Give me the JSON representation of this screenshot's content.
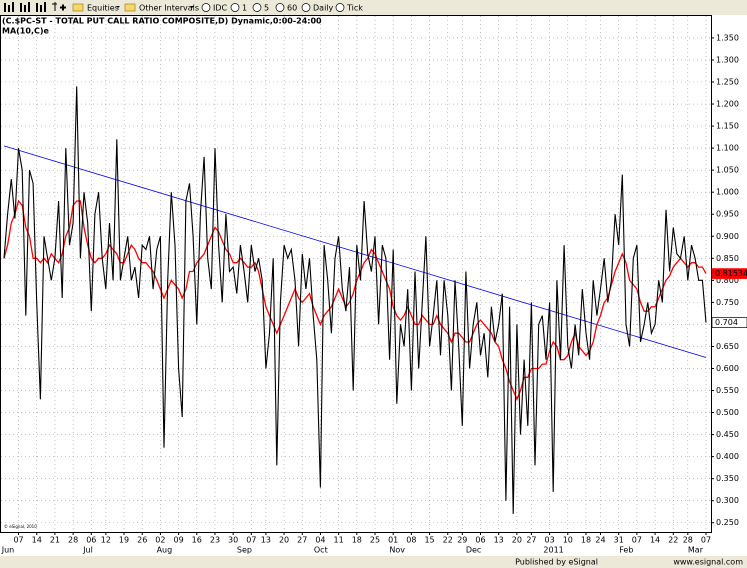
{
  "toolbar": {
    "items": [
      "Equities",
      "Other Intervals",
      "IDC",
      "1",
      "5",
      "60",
      "Daily",
      "Tick"
    ]
  },
  "chart_data": {
    "type": "line",
    "title": "(C.$PC-ST - TOTAL PUT CALL RATIO COMPOSITE,D) Dynamic,0:00-24:00",
    "categories": [
      null,
      null,
      null,
      null,
      "07",
      null,
      null,
      null,
      null,
      "14",
      null,
      null,
      null,
      null,
      "21",
      null,
      null,
      null,
      null,
      "28",
      null,
      null,
      null,
      null,
      "06",
      null,
      null,
      null,
      "12",
      null,
      null,
      null,
      null,
      "19",
      null,
      null,
      null,
      null,
      "26",
      null,
      null,
      null,
      null,
      "02",
      null,
      null,
      null,
      null,
      "09",
      null,
      null,
      null,
      null,
      "16",
      null,
      null,
      null,
      null,
      "23",
      null,
      null,
      null,
      null,
      "30",
      null,
      null,
      null,
      null,
      "07",
      null,
      null,
      null,
      "13",
      null,
      null,
      null,
      null,
      "20",
      null,
      null,
      null,
      null,
      "27",
      null,
      null,
      null,
      null,
      "04",
      null,
      null,
      null,
      null,
      "11",
      null,
      null,
      null,
      null,
      "18",
      null,
      null,
      null,
      null,
      "25",
      null,
      null,
      null,
      null,
      "01",
      null,
      null,
      null,
      null,
      "08",
      null,
      null,
      null,
      null,
      "15",
      null,
      null,
      null,
      null,
      "22",
      null,
      null,
      null,
      "29",
      null,
      null,
      null,
      null,
      "06",
      null,
      null,
      null,
      null,
      "13",
      null,
      null,
      null,
      null,
      "20",
      null,
      null,
      null,
      "27",
      null,
      null,
      null,
      null,
      "03",
      null,
      null,
      null,
      null,
      "10",
      null,
      null,
      null,
      null,
      "18",
      null,
      null,
      null,
      "24",
      null,
      null,
      null,
      null,
      "31",
      null,
      null,
      null,
      null,
      "07",
      null,
      null,
      null,
      null,
      "14",
      null,
      null,
      null,
      null,
      "22",
      null,
      null,
      null,
      "28",
      null,
      null,
      null,
      null,
      "07"
    ],
    "month_labels": [
      "Jun",
      null,
      null,
      null,
      null,
      null,
      null,
      null,
      null,
      null,
      null,
      null,
      null,
      null,
      null,
      null,
      null,
      null,
      null,
      null,
      null,
      null,
      "Jul",
      null,
      null,
      null,
      null,
      null,
      null,
      null,
      null,
      null,
      null,
      null,
      null,
      null,
      null,
      null,
      null,
      null,
      null,
      null,
      null,
      "Aug",
      null,
      null,
      null,
      null,
      null,
      null,
      null,
      null,
      null,
      null,
      null,
      null,
      null,
      null,
      null,
      null,
      null,
      null,
      null,
      null,
      null,
      "Sep",
      null,
      null,
      null,
      null,
      null,
      null,
      null,
      null,
      null,
      null,
      null,
      null,
      null,
      null,
      null,
      null,
      null,
      null,
      null,
      null,
      "Oct",
      null,
      null,
      null,
      null,
      null,
      null,
      null,
      null,
      null,
      null,
      null,
      null,
      null,
      null,
      null,
      null,
      null,
      null,
      null,
      null,
      "Nov",
      null,
      null,
      null,
      null,
      null,
      null,
      null,
      null,
      null,
      null,
      null,
      null,
      null,
      null,
      null,
      null,
      null,
      null,
      null,
      null,
      "Dec",
      null,
      null,
      null,
      null,
      null,
      null,
      null,
      null,
      null,
      null,
      null,
      null,
      null,
      null,
      null,
      null,
      null,
      null,
      null,
      null,
      null,
      "2011",
      null,
      null,
      null,
      null,
      null,
      null,
      null,
      null,
      null,
      null,
      null,
      null,
      null,
      null,
      null,
      null,
      null,
      null,
      null,
      "Feb",
      null,
      null,
      null,
      null,
      null,
      null,
      null,
      null,
      null,
      null,
      null,
      null,
      null,
      null,
      null,
      null,
      null,
      null,
      "Mar",
      null,
      null,
      null,
      null
    ],
    "series": [
      {
        "color": "#000000",
        "values": [
          0.85,
          0.95,
          1.03,
          0.94,
          1.1,
          1.05,
          0.72,
          1.05,
          1.02,
          0.75,
          0.53,
          0.9,
          0.85,
          0.8,
          0.85,
          0.98,
          0.76,
          1.1,
          0.88,
          0.93,
          1.24,
          0.85,
          1.0,
          0.93,
          0.73,
          0.95,
          1.0,
          0.85,
          0.78,
          0.93,
          0.8,
          1.12,
          0.8,
          0.85,
          0.9,
          0.8,
          0.83,
          0.76,
          0.88,
          0.87,
          0.9,
          0.78,
          0.87,
          0.9,
          0.42,
          0.8,
          1.0,
          0.88,
          0.6,
          0.49,
          0.98,
          1.02,
          0.9,
          0.7,
          0.95,
          1.08,
          0.85,
          0.78,
          1.1,
          0.88,
          0.75,
          0.95,
          0.82,
          0.83,
          0.77,
          0.88,
          0.82,
          0.75,
          0.88,
          0.82,
          0.85,
          0.8,
          0.6,
          0.68,
          0.85,
          0.38,
          0.75,
          0.88,
          0.85,
          0.87,
          0.8,
          0.65,
          0.86,
          0.78,
          0.85,
          0.72,
          0.62,
          0.33,
          0.88,
          0.8,
          0.68,
          0.85,
          0.9,
          0.78,
          0.73,
          0.83,
          0.55,
          0.88,
          0.8,
          0.98,
          0.86,
          0.82,
          0.9,
          0.7,
          0.88,
          0.85,
          0.62,
          0.87,
          0.52,
          0.7,
          0.65,
          0.78,
          0.55,
          0.82,
          0.6,
          0.75,
          0.9,
          0.65,
          0.72,
          0.8,
          0.63,
          0.8,
          0.72,
          0.55,
          0.8,
          0.65,
          0.47,
          0.82,
          0.6,
          0.7,
          0.75,
          0.63,
          0.68,
          0.58,
          0.74,
          0.66,
          0.7,
          0.77,
          0.3,
          0.74,
          0.27,
          0.7,
          0.45,
          0.62,
          0.47,
          0.75,
          0.38,
          0.7,
          0.72,
          0.62,
          0.75,
          0.32,
          0.8,
          0.62,
          0.88,
          0.65,
          0.6,
          0.7,
          0.63,
          0.78,
          0.68,
          0.62,
          0.8,
          0.72,
          0.78,
          0.85,
          0.75,
          0.8,
          0.95,
          0.88,
          1.04,
          0.7,
          0.65,
          0.85,
          0.88,
          0.66,
          0.7,
          0.75,
          0.68,
          0.7,
          0.8,
          0.75,
          0.96,
          0.82,
          0.92,
          0.86,
          0.85,
          0.9,
          0.8,
          0.88,
          0.85,
          0.8,
          0.8,
          0.704
        ]
      },
      {
        "name": "MA(10,C)e",
        "color": "#ff0000",
        "values": [
          0.85,
          0.88,
          0.93,
          0.95,
          0.98,
          0.97,
          0.92,
          0.9,
          0.85,
          0.85,
          0.84,
          0.85,
          0.84,
          0.86,
          0.85,
          0.84,
          0.86,
          0.9,
          0.92,
          0.97,
          0.98,
          0.98,
          0.92,
          0.88,
          0.85,
          0.84,
          0.85,
          0.85,
          0.86,
          0.88,
          0.87,
          0.86,
          0.84,
          0.84,
          0.86,
          0.88,
          0.87,
          0.85,
          0.84,
          0.84,
          0.83,
          0.82,
          0.8,
          0.78,
          0.76,
          0.78,
          0.8,
          0.79,
          0.78,
          0.76,
          0.78,
          0.82,
          0.82,
          0.84,
          0.85,
          0.86,
          0.88,
          0.9,
          0.92,
          0.91,
          0.89,
          0.87,
          0.86,
          0.84,
          0.84,
          0.85,
          0.84,
          0.83,
          0.83,
          0.84,
          0.82,
          0.78,
          0.74,
          0.72,
          0.7,
          0.68,
          0.7,
          0.72,
          0.74,
          0.76,
          0.78,
          0.76,
          0.75,
          0.76,
          0.77,
          0.74,
          0.72,
          0.7,
          0.72,
          0.73,
          0.74,
          0.76,
          0.78,
          0.76,
          0.74,
          0.75,
          0.77,
          0.8,
          0.82,
          0.84,
          0.85,
          0.87,
          0.86,
          0.84,
          0.82,
          0.8,
          0.78,
          0.74,
          0.72,
          0.71,
          0.72,
          0.74,
          0.72,
          0.7,
          0.7,
          0.72,
          0.71,
          0.7,
          0.7,
          0.72,
          0.7,
          0.69,
          0.68,
          0.66,
          0.68,
          0.68,
          0.67,
          0.66,
          0.66,
          0.68,
          0.7,
          0.71,
          0.7,
          0.69,
          0.68,
          0.66,
          0.65,
          0.62,
          0.6,
          0.57,
          0.55,
          0.53,
          0.55,
          0.58,
          0.58,
          0.6,
          0.6,
          0.6,
          0.61,
          0.61,
          0.64,
          0.66,
          0.65,
          0.62,
          0.62,
          0.63,
          0.66,
          0.68,
          0.65,
          0.64,
          0.63,
          0.64,
          0.66,
          0.7,
          0.72,
          0.75,
          0.76,
          0.79,
          0.82,
          0.84,
          0.86,
          0.84,
          0.8,
          0.79,
          0.78,
          0.75,
          0.73,
          0.73,
          0.74,
          0.74,
          0.76,
          0.78,
          0.8,
          0.81,
          0.83,
          0.84,
          0.85,
          0.84,
          0.83,
          0.84,
          0.84,
          0.83,
          0.83,
          0.815341
        ]
      }
    ],
    "trendline": {
      "color": "#0000ff",
      "values": [
        1.105,
        0.625
      ]
    },
    "ylim": [
      0.229,
      1.402
    ],
    "yticks": [
      {
        "value": 0.25,
        "label": "0.250"
      },
      {
        "value": 0.3,
        "label": "0.300"
      },
      {
        "value": 0.35,
        "label": "0.350"
      },
      {
        "value": 0.4,
        "label": "0.400"
      },
      {
        "value": 0.45,
        "label": "0.450"
      },
      {
        "value": 0.5,
        "label": "0.500"
      },
      {
        "value": 0.55,
        "label": "0.550"
      },
      {
        "value": 0.6,
        "label": "0.600"
      },
      {
        "value": 0.65,
        "label": "0.650"
      },
      {
        "value": 0.7,
        "label": "0.700"
      },
      {
        "value": 0.75,
        "label": "0.750"
      },
      {
        "value": 0.8,
        "label": "0.800"
      },
      {
        "value": 0.85,
        "label": "0.850"
      },
      {
        "value": 0.9,
        "label": "0.900"
      },
      {
        "value": 0.95,
        "label": "0.950"
      },
      {
        "value": 1.0,
        "label": "1.000"
      },
      {
        "value": 1.05,
        "label": "1.050"
      },
      {
        "value": 1.1,
        "label": "1.100"
      },
      {
        "value": 1.15,
        "label": "1.150"
      },
      {
        "value": 1.2,
        "label": "1.200"
      },
      {
        "value": 1.25,
        "label": "1.250"
      },
      {
        "value": 1.3,
        "label": "1.300"
      },
      {
        "value": 1.35,
        "label": "1.350"
      }
    ],
    "grid": true,
    "copyright": "© eSignal, 2010"
  },
  "footer": {
    "publisher": "Published by eSignal",
    "url": "www.esignal.com"
  }
}
